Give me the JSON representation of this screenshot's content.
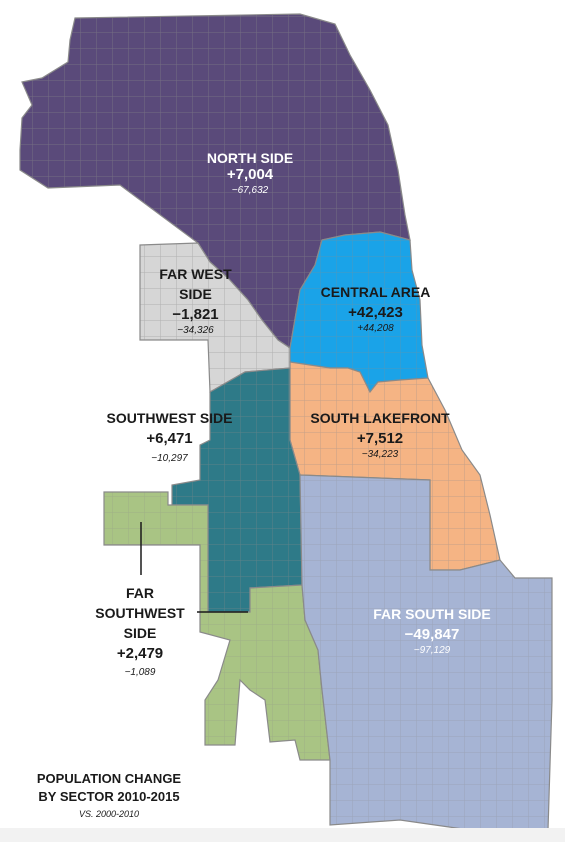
{
  "colors": {
    "north_side": "#5a4a7a",
    "central_area": "#1aa3e8",
    "far_west_side": "#d6d6d6",
    "southwest_side": "#2e7a88",
    "south_lakefront": "#f5b484",
    "far_southwest_side": "#a9c484",
    "far_south_side": "#a6b4d4",
    "grid_lines": "#8a8a8a"
  },
  "sectors": [
    {
      "id": "north-side",
      "name": "NORTH SIDE",
      "change": "+7,004",
      "prior": "−67,632"
    },
    {
      "id": "central-area",
      "name": "CENTRAL AREA",
      "change": "+42,423",
      "prior": "+44,208"
    },
    {
      "id": "far-west-side",
      "name_line1": "FAR WEST",
      "name_line2": "SIDE",
      "change": "−1,821",
      "prior": "−34,326"
    },
    {
      "id": "southwest-side",
      "name": "SOUTHWEST SIDE",
      "change": "+6,471",
      "prior": "−10,297"
    },
    {
      "id": "south-lakefront",
      "name": "SOUTH LAKEFRONT",
      "change": "+7,512",
      "prior": "−34,223"
    },
    {
      "id": "far-southwest-side",
      "name_line1": "FAR",
      "name_line2": "SOUTHWEST",
      "name_line3": "SIDE",
      "change": "+2,479",
      "prior": "−1,089"
    },
    {
      "id": "far-south-side",
      "name": "FAR SOUTH SIDE",
      "change": "−49,847",
      "prior": "−97,129"
    }
  ],
  "legend": {
    "title_line1": "POPULATION CHANGE",
    "title_line2": "BY SECTOR 2010-2015",
    "subtitle": "VS. 2000-2010"
  }
}
